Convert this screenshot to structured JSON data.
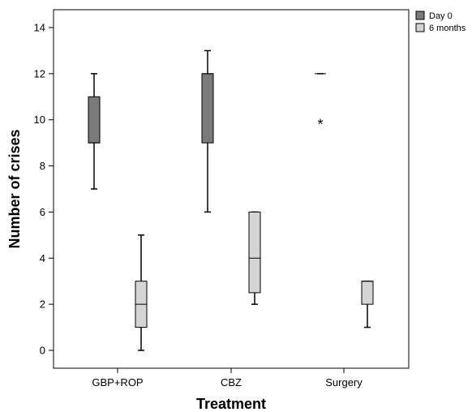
{
  "chart_data": {
    "type": "boxplot",
    "xlabel": "Treatment",
    "ylabel": "Number of crises",
    "ylim": [
      -0.9,
      14.8
    ],
    "yticks": [
      0,
      2,
      4,
      6,
      8,
      10,
      12,
      14
    ],
    "categories": [
      "GBP+ROP",
      "CBZ",
      "Surgery"
    ],
    "legend_position": "top-right, outside plot",
    "outlier_marker": "*",
    "series": [
      {
        "name": "Day 0",
        "color": "#7a7a7a",
        "boxes": [
          {
            "category": "GBP+ROP",
            "min": 7,
            "q1": 9,
            "median": 9,
            "q3": 11,
            "max": 12
          },
          {
            "category": "CBZ",
            "min": 6,
            "q1": 9,
            "median": 12,
            "q3": 12,
            "max": 13
          },
          {
            "category": "Surgery",
            "min": 12,
            "q1": 12,
            "median": 12,
            "q3": 12,
            "max": 12,
            "outliers": [
              10
            ]
          }
        ]
      },
      {
        "name": "6 months",
        "color": "#d4d4d4",
        "boxes": [
          {
            "category": "GBP+ROP",
            "min": 0,
            "q1": 1,
            "median": 2,
            "q3": 3,
            "max": 5
          },
          {
            "category": "CBZ",
            "min": 2,
            "q1": 2.5,
            "median": 4,
            "q3": 6,
            "max": 6
          },
          {
            "category": "Surgery",
            "min": 1,
            "q1": 2,
            "median": 3,
            "q3": 3,
            "max": 3
          }
        ]
      }
    ]
  }
}
